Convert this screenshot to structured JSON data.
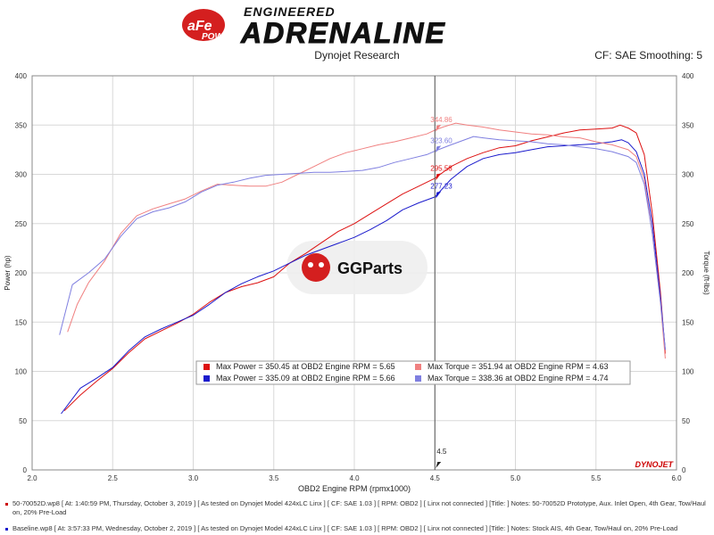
{
  "header": {
    "brand_badge": "aFe",
    "brand_power": "POWER",
    "tagline_top": "ENGINEERED",
    "tagline_main": "ADRENALINE",
    "center_text": "Dynojet Research",
    "right_text": "CF: SAE Smoothing: 5"
  },
  "watermark": {
    "text": "GGParts"
  },
  "dynojet_logo": "DYNOJET",
  "colors": {
    "red_power": "#dd1111",
    "blue_power": "#1a1acc",
    "red_torque": "#f08080",
    "blue_torque": "#7f7fe0"
  },
  "chart_data": {
    "type": "line",
    "xlabel": "OBD2 Engine RPM (rpmx1000)",
    "ylabel": "Power (hp)",
    "ylabel_right": "Torque (ft-lbs)",
    "xlim": [
      2.0,
      6.0
    ],
    "ylim": [
      0,
      400
    ],
    "xticks": [
      "2.0",
      "2.5",
      "3.0",
      "3.5",
      "4.0",
      "4.5",
      "5.0",
      "5.5",
      "6.0"
    ],
    "yticks": [
      "0",
      "50",
      "100",
      "150",
      "200",
      "250",
      "300",
      "350",
      "400"
    ],
    "grid": true,
    "cursor": {
      "x": 4.5,
      "label": "4.5",
      "values": [
        {
          "label": "344.86",
          "y": 344.86,
          "series": "red_torque"
        },
        {
          "label": "323.60",
          "y": 323.6,
          "series": "blue_torque"
        },
        {
          "label": "295.58",
          "y": 295.58,
          "series": "red_power"
        },
        {
          "label": "277.23",
          "y": 277.23,
          "series": "blue_power"
        }
      ]
    },
    "series": [
      {
        "key": "red_power",
        "x": [
          2.2,
          2.3,
          2.4,
          2.5,
          2.6,
          2.7,
          2.8,
          2.9,
          3.0,
          3.1,
          3.2,
          3.3,
          3.4,
          3.5,
          3.6,
          3.7,
          3.8,
          3.9,
          4.0,
          4.1,
          4.2,
          4.3,
          4.4,
          4.5,
          4.6,
          4.7,
          4.8,
          4.9,
          5.0,
          5.1,
          5.2,
          5.3,
          5.4,
          5.5,
          5.6,
          5.65,
          5.7,
          5.75,
          5.8,
          5.85,
          5.9,
          5.93
        ],
        "y": [
          60,
          76,
          90,
          103,
          119,
          133,
          141,
          149,
          158,
          170,
          180,
          186,
          190,
          196,
          210,
          220,
          231,
          242,
          250,
          260,
          270,
          280,
          288,
          296,
          308,
          316,
          322,
          327,
          329,
          334,
          338,
          342,
          345,
          346,
          347,
          350,
          347,
          342,
          320,
          260,
          180,
          118
        ]
      },
      {
        "key": "blue_power",
        "x": [
          2.18,
          2.3,
          2.4,
          2.5,
          2.6,
          2.7,
          2.8,
          2.9,
          3.0,
          3.1,
          3.2,
          3.3,
          3.4,
          3.5,
          3.6,
          3.7,
          3.8,
          3.9,
          4.0,
          4.1,
          4.2,
          4.3,
          4.4,
          4.5,
          4.6,
          4.7,
          4.8,
          4.9,
          5.0,
          5.1,
          5.2,
          5.3,
          5.4,
          5.5,
          5.6,
          5.66,
          5.7,
          5.75,
          5.8,
          5.85,
          5.9,
          5.93
        ],
        "y": [
          57,
          83,
          93,
          104,
          121,
          135,
          143,
          150,
          157,
          168,
          180,
          189,
          196,
          202,
          210,
          218,
          224,
          230,
          236,
          244,
          253,
          264,
          271,
          277,
          295,
          308,
          316,
          320,
          322,
          325,
          328,
          329,
          330,
          331,
          333,
          335,
          332,
          323,
          300,
          250,
          175,
          122
        ]
      },
      {
        "key": "red_torque",
        "x": [
          2.22,
          2.28,
          2.35,
          2.45,
          2.55,
          2.65,
          2.75,
          2.85,
          2.95,
          3.05,
          3.15,
          3.25,
          3.35,
          3.45,
          3.55,
          3.65,
          3.75,
          3.85,
          3.95,
          4.05,
          4.15,
          4.25,
          4.35,
          4.45,
          4.5,
          4.55,
          4.63,
          4.7,
          4.8,
          4.9,
          5.0,
          5.1,
          5.2,
          5.3,
          5.4,
          5.5,
          5.6,
          5.7,
          5.75,
          5.8,
          5.85,
          5.9,
          5.93
        ],
        "y": [
          140,
          168,
          190,
          212,
          240,
          258,
          265,
          270,
          275,
          283,
          290,
          289,
          288,
          288,
          292,
          300,
          308,
          316,
          322,
          326,
          330,
          333,
          337,
          341,
          344.86,
          348,
          351.94,
          350,
          348,
          345,
          343,
          341,
          340,
          338,
          337,
          333,
          330,
          325,
          318,
          295,
          240,
          170,
          113
        ]
      },
      {
        "key": "blue_torque",
        "x": [
          2.17,
          2.25,
          2.35,
          2.45,
          2.55,
          2.65,
          2.75,
          2.85,
          2.95,
          3.05,
          3.15,
          3.25,
          3.35,
          3.45,
          3.55,
          3.65,
          3.75,
          3.85,
          3.95,
          4.05,
          4.15,
          4.25,
          4.35,
          4.45,
          4.5,
          4.6,
          4.74,
          4.8,
          4.9,
          5.0,
          5.1,
          5.2,
          5.3,
          5.4,
          5.5,
          5.6,
          5.7,
          5.75,
          5.8,
          5.85,
          5.9,
          5.93
        ],
        "y": [
          137,
          188,
          200,
          214,
          237,
          255,
          262,
          266,
          272,
          282,
          289,
          292,
          296,
          299,
          300,
          301,
          302,
          302,
          303,
          304,
          307,
          312,
          316,
          320,
          323.6,
          330,
          338.36,
          337,
          335,
          334,
          333,
          331,
          330,
          328,
          326,
          323,
          318,
          312,
          290,
          240,
          170,
          122
        ]
      }
    ],
    "legend": [
      {
        "series": "red_power",
        "text": "Max Power = 350.45 at OBD2 Engine RPM = 5.65"
      },
      {
        "series": "blue_power",
        "text": "Max Power = 335.09 at OBD2 Engine RPM = 5.66"
      },
      {
        "series": "red_torque",
        "text": "Max Torque = 351.94 at OBD2 Engine RPM = 4.63"
      },
      {
        "series": "blue_torque",
        "text": "Max Torque = 338.36 at OBD2 Engine RPM = 4.74"
      }
    ]
  },
  "footer": {
    "run1": "50-70052D.wp8 [ At: 1:40:59 PM, Thursday, October 3, 2019 ] [ As tested on Dynojet Model 424xLC Linx ] [ CF: SAE 1.03 ] [ RPM: OBD2 ] [ Linx not connected ] [Title: ]  Notes: 50-70052D Prototype, Aux. Inlet Open, 4th Gear, Tow/Haul on, 20% Pre-Load",
    "run2": "Baseline.wp8 [ At: 3:57:33 PM, Wednesday, October 2, 2019 ] [ As tested on Dynojet Model 424xLC Linx ] [ CF: SAE 1.03 ] [ RPM: OBD2 ] [ Linx not connected ] [Title: ]  Notes: Stock AIS, 4th Gear, Tow/Haul on, 20% Pre-Load"
  }
}
